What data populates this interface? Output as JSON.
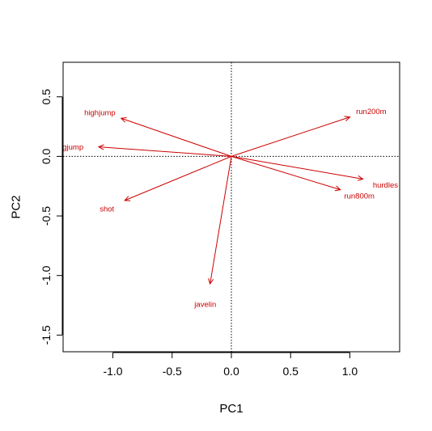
{
  "chart_data": {
    "type": "biplot-arrows",
    "title": "",
    "xlabel": "PC1",
    "ylabel": "PC2",
    "xlim": [
      -1.42,
      1.42
    ],
    "ylim": [
      -1.64,
      0.79
    ],
    "x_ticks": [
      -1.0,
      -0.5,
      0.0,
      0.5,
      1.0
    ],
    "x_tick_labels": [
      "-1.0",
      "-0.5",
      "0.0",
      "0.5",
      "1.0"
    ],
    "y_ticks": [
      0.5,
      0.0,
      -0.5,
      -1.0,
      -1.5
    ],
    "y_tick_labels": [
      "0.5",
      "0.0",
      "-0.5",
      "-1.0",
      "-1.5"
    ],
    "reference_lines": {
      "x": 0,
      "y": 0,
      "style": "dotted"
    },
    "arrow_color": "#cc0000",
    "arrows": [
      {
        "name": "highjump",
        "x": -0.93,
        "y": 0.32,
        "label_x": -1.11,
        "label_y": 0.37
      },
      {
        "name": "longjump",
        "x": -1.12,
        "y": 0.08,
        "label_x": -1.38,
        "label_y": 0.08
      },
      {
        "name": "shot",
        "x": -0.9,
        "y": -0.37,
        "label_x": -1.05,
        "label_y": -0.44
      },
      {
        "name": "javelin",
        "x": -0.18,
        "y": -1.07,
        "label_x": -0.22,
        "label_y": -1.24
      },
      {
        "name": "run200m",
        "x": 1.0,
        "y": 0.33,
        "label_x": 1.18,
        "label_y": 0.38
      },
      {
        "name": "hurdles",
        "x": 1.11,
        "y": -0.19,
        "label_x": 1.3,
        "label_y": -0.24
      },
      {
        "name": "run800m",
        "x": 0.92,
        "y": -0.28,
        "label_x": 1.08,
        "label_y": -0.33
      }
    ]
  }
}
